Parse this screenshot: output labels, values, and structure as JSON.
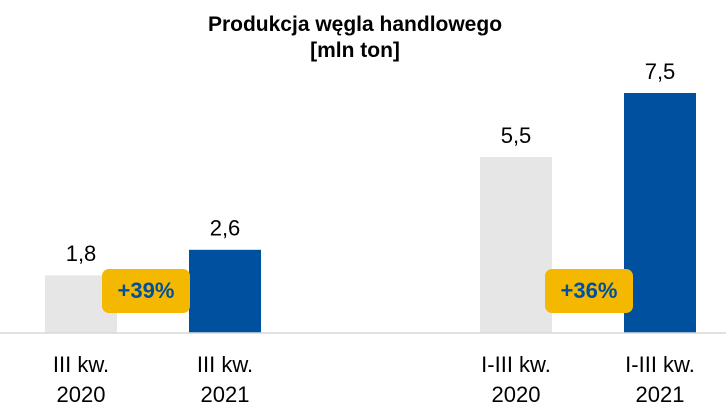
{
  "chart_data": {
    "type": "bar",
    "title": "Produkcja węgla handlowego [mln ton]",
    "categories": [
      "III kw. 2020",
      "III kw. 2021",
      "I-III kw. 2020",
      "I-III kw. 2021"
    ],
    "values": [
      1.8,
      2.6,
      5.5,
      7.5
    ],
    "value_labels": [
      "1,8",
      "2,6",
      "5,5",
      "7,5"
    ],
    "colors": [
      "#e6e6e6",
      "#0050a0",
      "#e6e6e6",
      "#0050a0"
    ],
    "annotations": [
      "+39%",
      "+36%"
    ]
  }
}
